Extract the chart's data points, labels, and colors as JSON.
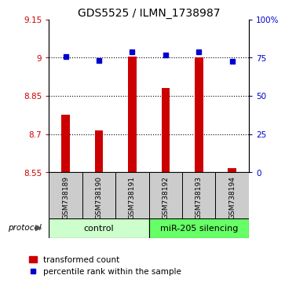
{
  "title": "GDS5525 / ILMN_1738987",
  "samples": [
    "GSM738189",
    "GSM738190",
    "GSM738191",
    "GSM738192",
    "GSM738193",
    "GSM738194"
  ],
  "red_values": [
    8.775,
    8.715,
    9.005,
    8.882,
    9.002,
    8.565
  ],
  "blue_values": [
    75.5,
    73.0,
    78.5,
    76.5,
    78.5,
    72.5
  ],
  "ylim_left": [
    8.55,
    9.15
  ],
  "ylim_right": [
    0,
    100
  ],
  "yticks_left": [
    8.55,
    8.7,
    8.85,
    9.0,
    9.15
  ],
  "yticks_right": [
    0,
    25,
    50,
    75,
    100
  ],
  "ytick_labels_left": [
    "8.55",
    "8.7",
    "8.85",
    "9",
    "9.15"
  ],
  "ytick_labels_right": [
    "0",
    "25",
    "50",
    "75",
    "100%"
  ],
  "hlines": [
    9.0,
    8.85,
    8.7,
    8.55
  ],
  "red_color": "#cc0000",
  "blue_color": "#0000cc",
  "control_group": [
    0,
    1,
    2
  ],
  "treatment_group": [
    3,
    4,
    5
  ],
  "control_label": "control",
  "treatment_label": "miR-205 silencing",
  "control_color": "#ccffcc",
  "treatment_color": "#66ff66",
  "xlabel_area_color": "#cccccc",
  "protocol_label": "protocol",
  "legend_red_label": "transformed count",
  "legend_blue_label": "percentile rank within the sample",
  "title_fontsize": 10,
  "tick_fontsize": 7.5,
  "sample_fontsize": 6.5,
  "group_fontsize": 8
}
